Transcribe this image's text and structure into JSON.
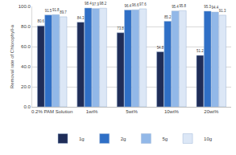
{
  "chart_data": {
    "type": "bar",
    "categories": [
      "0.2% PAM Solution",
      "1wt%",
      "5wt%",
      "10wt%",
      "20wt%"
    ],
    "series": [
      {
        "name": "1g",
        "color": "#1f2d58",
        "values": [
          80.6,
          84.3,
          73.8,
          54.8,
          51.2
        ]
      },
      {
        "name": "2g",
        "color": "#2f6fc6",
        "values": [
          91.5,
          98.4,
          96.4,
          85.2,
          95.3
        ]
      },
      {
        "name": "5g",
        "color": "#92b8e8",
        "values": [
          91.8,
          97.9,
          96.6,
          95.4,
          94.4
        ]
      },
      {
        "name": "10g",
        "color": "#dce7f6",
        "values": [
          89.7,
          98.2,
          97.6,
          95.8,
          91.3
        ]
      }
    ],
    "y_label": "Removal rate of Chlorophyll-a",
    "ylim": [
      0,
      100
    ],
    "yticks": [
      {
        "value": 0,
        "label": "0.0"
      },
      {
        "value": 20,
        "label": "20.0"
      },
      {
        "value": 40,
        "label": "40.0"
      },
      {
        "value": 60,
        "label": "60.0"
      },
      {
        "value": 80,
        "label": "80.0"
      },
      {
        "value": 100,
        "label": "100.0"
      }
    ],
    "grid": true,
    "legend": "bottom",
    "data_labels": true
  }
}
